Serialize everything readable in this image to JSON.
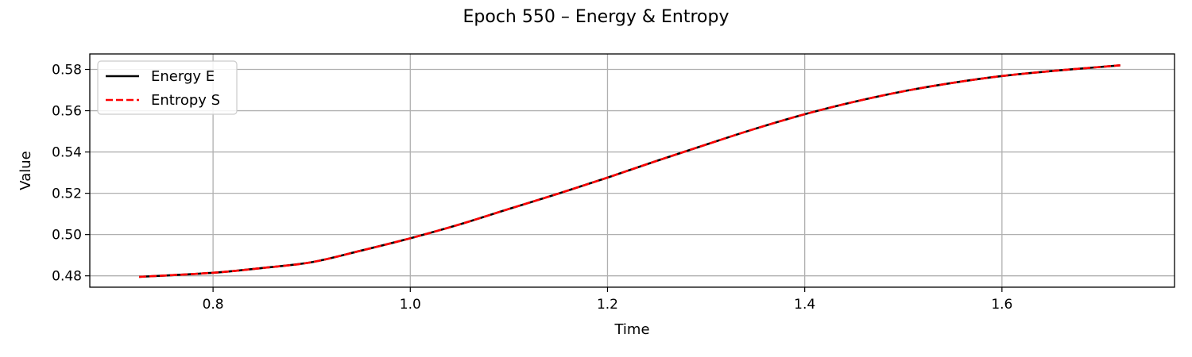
{
  "chart_data": {
    "type": "line",
    "title": "Epoch 550 – Energy & Entropy",
    "xlabel": "Time",
    "ylabel": "Value",
    "xlim": [
      0.675,
      1.775
    ],
    "ylim": [
      0.4745,
      0.5875
    ],
    "xticks": [
      0.8,
      1.0,
      1.2,
      1.4,
      1.6
    ],
    "xtick_labels": [
      "0.8",
      "1.0",
      "1.2",
      "1.4",
      "1.6"
    ],
    "yticks": [
      0.48,
      0.5,
      0.52,
      0.54,
      0.56,
      0.58
    ],
    "ytick_labels": [
      "0.48",
      "0.50",
      "0.52",
      "0.54",
      "0.56",
      "0.58"
    ],
    "grid": true,
    "legend_position": "top-left",
    "x": [
      0.725,
      0.8,
      0.85,
      0.9,
      0.95,
      1.0,
      1.05,
      1.1,
      1.15,
      1.2,
      1.25,
      1.3,
      1.35,
      1.4,
      1.45,
      1.5,
      1.55,
      1.6,
      1.65,
      1.7,
      1.72
    ],
    "series": [
      {
        "name": "Energy E",
        "color": "#000000",
        "style": "solid",
        "values": [
          0.4795,
          0.4815,
          0.4838,
          0.4866,
          0.4922,
          0.4982,
          0.5049,
          0.5124,
          0.5198,
          0.5276,
          0.5357,
          0.5436,
          0.5513,
          0.5583,
          0.5643,
          0.5694,
          0.5735,
          0.5768,
          0.5792,
          0.5812,
          0.582
        ]
      },
      {
        "name": "Entropy S",
        "color": "#ff0000",
        "style": "dashed",
        "values": [
          0.4795,
          0.4815,
          0.4838,
          0.4866,
          0.4922,
          0.4982,
          0.5049,
          0.5124,
          0.5198,
          0.5276,
          0.5357,
          0.5436,
          0.5513,
          0.5583,
          0.5643,
          0.5694,
          0.5735,
          0.5768,
          0.5792,
          0.5812,
          0.582
        ]
      }
    ]
  }
}
